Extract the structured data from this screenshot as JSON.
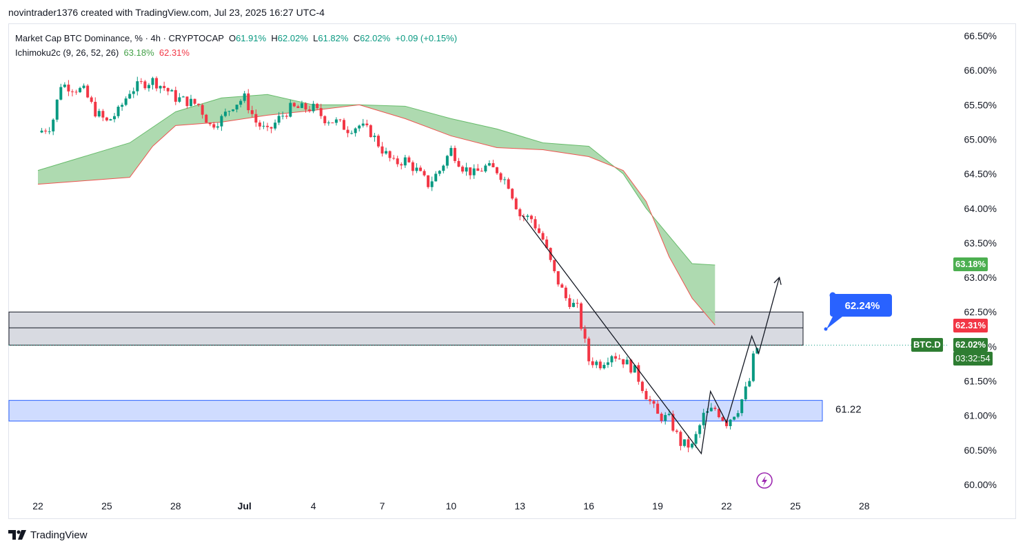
{
  "header": {
    "credit": "novintrader1376 created with TradingView.com, Jul 23, 2025 16:27 UTC-4"
  },
  "legend": {
    "symbol": "Market Cap BTC Dominance, % · 4h · CRYPTOCAP",
    "o_label": "O",
    "o_value": "61.91%",
    "h_label": "H",
    "h_value": "62.02%",
    "l_label": "L",
    "l_value": "61.82%",
    "c_label": "C",
    "c_value": "62.02%",
    "change": "+0.09 (+0.15%)",
    "indicator_name": "Ichimoku2c (9, 26, 52, 26)",
    "indicator_v1": "63.18%",
    "indicator_v2": "62.31%"
  },
  "price_axis": {
    "ticks": [
      "66.50%",
      "66.00%",
      "65.50%",
      "65.00%",
      "64.50%",
      "64.00%",
      "63.50%",
      "63.00%",
      "62.50%",
      "62.00%",
      "61.50%",
      "61.00%",
      "60.50%",
      "60.00%"
    ]
  },
  "time_axis": {
    "ticks": [
      "22",
      "25",
      "28",
      "Jul",
      "4",
      "7",
      "10",
      "13",
      "16",
      "19",
      "22",
      "25",
      "28"
    ]
  },
  "tags": {
    "cloud_top": "63.18%",
    "cloud_bottom": "62.31%",
    "symbol": "BTC.D",
    "last_price": "62.02%",
    "countdown": "03:32:54",
    "callout": "62.24%",
    "support_level": "61.22"
  },
  "footer": {
    "brand": "TradingView"
  },
  "colors": {
    "up": "#089981",
    "down": "#f23645",
    "cloud": "#a5d6a7",
    "cloud_edge": "#ef5350",
    "callout": "#2962ff",
    "zone_gray": "#d1d4dc",
    "zone_blue": "#cfdcff"
  },
  "chart_data": {
    "type": "candlestick",
    "title": "Market Cap BTC Dominance, % · 4h · CRYPTOCAP",
    "ylim": [
      60.0,
      66.5
    ],
    "x_ticks": [
      "22",
      "25",
      "28",
      "Jul",
      "4",
      "7",
      "10",
      "13",
      "16",
      "19",
      "22",
      "25",
      "28"
    ],
    "close_path": [
      {
        "day": 0.0,
        "close": 65.1
      },
      {
        "day": 0.6,
        "close": 65.2
      },
      {
        "day": 1.0,
        "close": 65.8
      },
      {
        "day": 1.5,
        "close": 65.75
      },
      {
        "day": 2.0,
        "close": 65.7
      },
      {
        "day": 2.5,
        "close": 65.4
      },
      {
        "day": 3.0,
        "close": 65.25
      },
      {
        "day": 3.5,
        "close": 65.4
      },
      {
        "day": 4.0,
        "close": 65.7
      },
      {
        "day": 4.5,
        "close": 65.8
      },
      {
        "day": 5.0,
        "close": 65.85
      },
      {
        "day": 5.5,
        "close": 65.75
      },
      {
        "day": 6.0,
        "close": 65.6
      },
      {
        "day": 6.5,
        "close": 65.55
      },
      {
        "day": 7.0,
        "close": 65.5
      },
      {
        "day": 7.5,
        "close": 65.2
      },
      {
        "day": 8.0,
        "close": 65.3
      },
      {
        "day": 8.5,
        "close": 65.5
      },
      {
        "day": 9.0,
        "close": 65.6
      },
      {
        "day": 9.5,
        "close": 65.25
      },
      {
        "day": 10.0,
        "close": 65.1
      },
      {
        "day": 10.5,
        "close": 65.3
      },
      {
        "day": 11.0,
        "close": 65.45
      },
      {
        "day": 11.5,
        "close": 65.45
      },
      {
        "day": 12.0,
        "close": 65.45
      },
      {
        "day": 12.5,
        "close": 65.3
      },
      {
        "day": 13.0,
        "close": 65.25
      },
      {
        "day": 13.5,
        "close": 65.15
      },
      {
        "day": 14.0,
        "close": 65.2
      },
      {
        "day": 14.5,
        "close": 65.1
      },
      {
        "day": 15.0,
        "close": 64.85
      },
      {
        "day": 15.5,
        "close": 64.65
      },
      {
        "day": 16.0,
        "close": 64.7
      },
      {
        "day": 16.5,
        "close": 64.55
      },
      {
        "day": 17.0,
        "close": 64.35
      },
      {
        "day": 17.5,
        "close": 64.55
      },
      {
        "day": 18.0,
        "close": 64.85
      },
      {
        "day": 18.5,
        "close": 64.6
      },
      {
        "day": 19.0,
        "close": 64.5
      },
      {
        "day": 19.5,
        "close": 64.6
      },
      {
        "day": 20.0,
        "close": 64.55
      },
      {
        "day": 20.5,
        "close": 64.35
      },
      {
        "day": 21.0,
        "close": 63.9
      },
      {
        "day": 21.5,
        "close": 63.85
      },
      {
        "day": 22.0,
        "close": 63.55
      },
      {
        "day": 22.5,
        "close": 63.05
      },
      {
        "day": 23.0,
        "close": 62.7
      },
      {
        "day": 23.5,
        "close": 62.55
      },
      {
        "day": 24.0,
        "close": 61.8
      },
      {
        "day": 24.5,
        "close": 61.75
      },
      {
        "day": 25.0,
        "close": 61.9
      },
      {
        "day": 25.5,
        "close": 61.8
      },
      {
        "day": 26.0,
        "close": 61.65
      },
      {
        "day": 26.5,
        "close": 61.3
      },
      {
        "day": 27.0,
        "close": 61.0
      },
      {
        "day": 27.5,
        "close": 60.95
      },
      {
        "day": 28.0,
        "close": 60.6
      },
      {
        "day": 28.5,
        "close": 60.55
      },
      {
        "day": 29.0,
        "close": 61.0
      },
      {
        "day": 29.5,
        "close": 61.1
      },
      {
        "day": 30.0,
        "close": 60.9
      },
      {
        "day": 30.5,
        "close": 61.1
      },
      {
        "day": 31.0,
        "close": 61.5
      },
      {
        "day": 31.2,
        "close": 61.9
      },
      {
        "day": 31.4,
        "close": 62.02
      }
    ],
    "ichimoku_cloud": {
      "upper": [
        {
          "day": 0.0,
          "value": 64.55
        },
        {
          "day": 2.0,
          "value": 64.75
        },
        {
          "day": 4.0,
          "value": 64.95
        },
        {
          "day": 6.0,
          "value": 65.4
        },
        {
          "day": 8.0,
          "value": 65.6
        },
        {
          "day": 10.0,
          "value": 65.65
        },
        {
          "day": 12.0,
          "value": 65.5
        },
        {
          "day": 14.0,
          "value": 65.5
        },
        {
          "day": 16.0,
          "value": 65.48
        },
        {
          "day": 18.0,
          "value": 65.3
        },
        {
          "day": 20.0,
          "value": 65.15
        },
        {
          "day": 22.0,
          "value": 64.95
        },
        {
          "day": 24.0,
          "value": 64.9
        },
        {
          "day": 25.5,
          "value": 64.5
        },
        {
          "day": 26.5,
          "value": 64.0
        },
        {
          "day": 27.5,
          "value": 63.6
        },
        {
          "day": 28.5,
          "value": 63.2
        },
        {
          "day": 29.5,
          "value": 63.18
        }
      ],
      "lower": [
        {
          "day": 0.0,
          "value": 64.35
        },
        {
          "day": 2.0,
          "value": 64.4
        },
        {
          "day": 4.0,
          "value": 64.45
        },
        {
          "day": 5.0,
          "value": 64.9
        },
        {
          "day": 6.0,
          "value": 65.2
        },
        {
          "day": 8.0,
          "value": 65.25
        },
        {
          "day": 10.0,
          "value": 65.35
        },
        {
          "day": 12.0,
          "value": 65.42
        },
        {
          "day": 14.0,
          "value": 65.5
        },
        {
          "day": 16.0,
          "value": 65.3
        },
        {
          "day": 18.0,
          "value": 65.05
        },
        {
          "day": 20.0,
          "value": 64.88
        },
        {
          "day": 22.0,
          "value": 64.85
        },
        {
          "day": 24.0,
          "value": 64.75
        },
        {
          "day": 25.5,
          "value": 64.55
        },
        {
          "day": 26.5,
          "value": 64.1
        },
        {
          "day": 27.5,
          "value": 63.3
        },
        {
          "day": 28.5,
          "value": 62.7
        },
        {
          "day": 29.5,
          "value": 62.31
        }
      ]
    },
    "zones": [
      {
        "name": "resistance",
        "from": 62.02,
        "to": 62.5,
        "mid": 62.27
      },
      {
        "name": "support",
        "from": 60.92,
        "to": 61.22
      }
    ],
    "projection": [
      {
        "day": 21.1,
        "value": 63.9
      },
      {
        "day": 28.9,
        "value": 60.45
      },
      {
        "day": 29.3,
        "value": 61.35
      },
      {
        "day": 30.0,
        "value": 60.9
      },
      {
        "day": 31.1,
        "value": 62.15
      },
      {
        "day": 31.4,
        "value": 61.9
      },
      {
        "day": 32.3,
        "value": 63.0
      }
    ],
    "last_price": 62.02
  }
}
